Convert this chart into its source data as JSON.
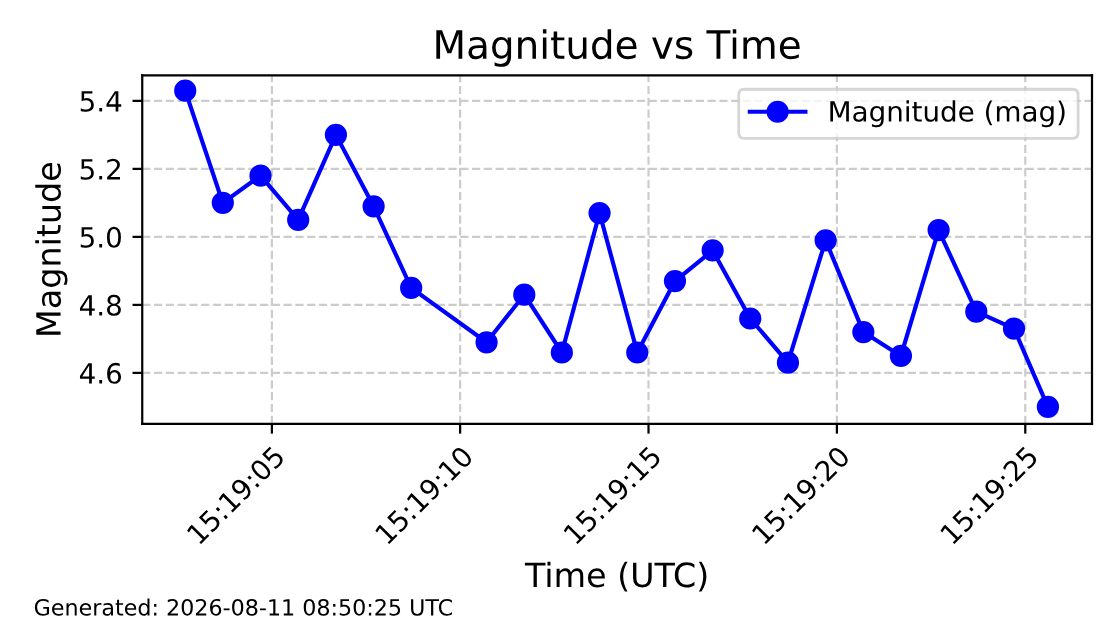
{
  "chart_data": {
    "type": "line",
    "title": "Magnitude vs Time",
    "xlabel": "Time (UTC)",
    "ylabel": "Magnitude",
    "x": [
      15.317417,
      15.317694,
      15.317972,
      15.31825,
      15.318528,
      15.318806,
      15.319083,
      15.319639,
      15.319917,
      15.320194,
      15.320472,
      15.32075,
      15.321028,
      15.321306,
      15.321583,
      15.321861,
      15.322139,
      15.322417,
      15.322694,
      15.322972,
      15.32325,
      15.323528,
      15.323778
    ],
    "series": [
      {
        "name": "Magnitude (mag)",
        "color": "#0000ff",
        "values": [
          5.43,
          5.1,
          5.18,
          5.05,
          5.3,
          5.09,
          4.85,
          4.69,
          4.83,
          4.66,
          5.07,
          4.66,
          4.87,
          4.96,
          4.76,
          4.63,
          4.99,
          4.72,
          4.65,
          5.02,
          4.78,
          4.73,
          4.5
        ]
      }
    ],
    "xlim": [
      15.3171,
      15.324103
    ],
    "xticks": [
      {
        "value": 15.318056,
        "label": "15:19:05"
      },
      {
        "value": 15.319444,
        "label": "15:19:10"
      },
      {
        "value": 15.320833,
        "label": "15:19:15"
      },
      {
        "value": 15.322222,
        "label": "15:19:20"
      },
      {
        "value": 15.323611,
        "label": "15:19:25"
      }
    ],
    "ylim": [
      4.45,
      5.475
    ],
    "yticks": [
      4.6,
      4.8,
      {
        "value": 5.0,
        "label": "5.0"
      },
      5.2,
      5.4
    ],
    "grid": true,
    "legend": "top right",
    "marker": "circle",
    "line_style": "solid",
    "annotations": [
      "Generated: 2026-08-11 08:50:25 UTC"
    ]
  }
}
